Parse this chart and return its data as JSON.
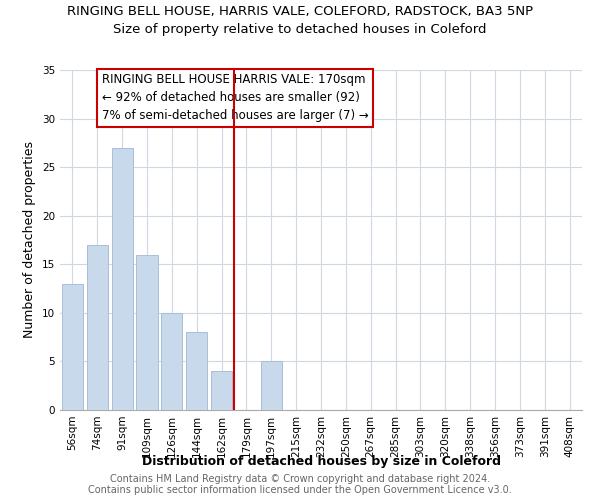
{
  "title": "RINGING BELL HOUSE, HARRIS VALE, COLEFORD, RADSTOCK, BA3 5NP",
  "subtitle": "Size of property relative to detached houses in Coleford",
  "xlabel": "Distribution of detached houses by size in Coleford",
  "ylabel": "Number of detached properties",
  "bar_labels": [
    "56sqm",
    "74sqm",
    "91sqm",
    "109sqm",
    "126sqm",
    "144sqm",
    "162sqm",
    "179sqm",
    "197sqm",
    "215sqm",
    "232sqm",
    "250sqm",
    "267sqm",
    "285sqm",
    "303sqm",
    "320sqm",
    "338sqm",
    "356sqm",
    "373sqm",
    "391sqm",
    "408sqm"
  ],
  "bar_values": [
    13,
    17,
    27,
    16,
    10,
    8,
    4,
    0,
    5,
    0,
    0,
    0,
    0,
    0,
    0,
    0,
    0,
    0,
    0,
    0,
    0
  ],
  "bar_color": "#c9d9ec",
  "bar_edge_color": "#a8bfd8",
  "vline_color": "#cc0000",
  "annotation_box_text": "RINGING BELL HOUSE HARRIS VALE: 170sqm\n← 92% of detached houses are smaller (92)\n7% of semi-detached houses are larger (7) →",
  "ylim": [
    0,
    35
  ],
  "yticks": [
    0,
    5,
    10,
    15,
    20,
    25,
    30,
    35
  ],
  "footer_line1": "Contains HM Land Registry data © Crown copyright and database right 2024.",
  "footer_line2": "Contains public sector information licensed under the Open Government Licence v3.0.",
  "background_color": "#ffffff",
  "grid_color": "#d0d8e4",
  "title_fontsize": 9.5,
  "subtitle_fontsize": 9.5,
  "axis_label_fontsize": 9,
  "tick_fontsize": 7.5,
  "footer_fontsize": 7,
  "annotation_fontsize": 8.5
}
